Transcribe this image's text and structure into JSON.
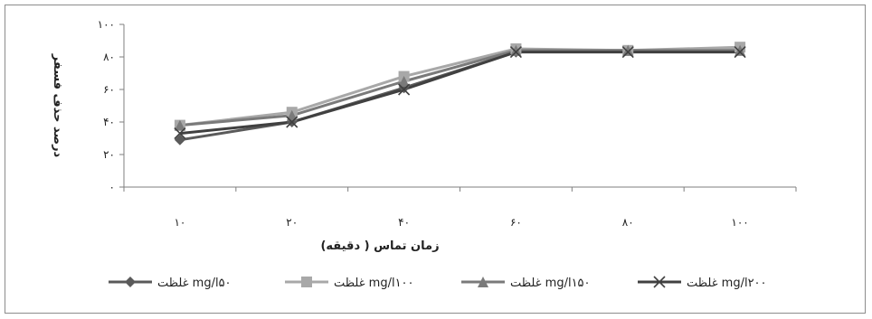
{
  "chart_data": {
    "type": "line",
    "title": "",
    "xlabel": "زمان تماس ( دقيقه)",
    "ylabel": "درصد حذف فسفر",
    "categories": [
      "۱۰",
      "۲۰",
      "۴۰",
      "۶۰",
      "۸۰",
      "۱۰۰"
    ],
    "x": [
      10,
      20,
      40,
      60,
      80,
      100
    ],
    "y_ticks": [
      {
        "value": 0,
        "label": "۰"
      },
      {
        "value": 20,
        "label": "۲۰"
      },
      {
        "value": 40,
        "label": "۴۰"
      },
      {
        "value": 60,
        "label": "۶۰"
      },
      {
        "value": 80,
        "label": "۸۰"
      },
      {
        "value": 100,
        "label": "۱۰۰"
      }
    ],
    "ylim": [
      0,
      100
    ],
    "grid": false,
    "legend_position": "bottom",
    "series": [
      {
        "name": "غلظت mg/l۵۰",
        "marker": "diamond",
        "color": "#5a5a5a",
        "values": [
          29,
          40,
          61,
          83,
          84,
          84
        ]
      },
      {
        "name": "غلظت mg/l۱۰۰",
        "marker": "square",
        "color": "#a8a8a8",
        "values": [
          38,
          46,
          68,
          85,
          84,
          86
        ]
      },
      {
        "name": "غلظت mg/l۱۵۰",
        "marker": "triangle",
        "color": "#7a7a7a",
        "values": [
          38,
          44,
          65,
          84,
          84,
          84
        ]
      },
      {
        "name": "غلظت mg/l۲۰۰",
        "marker": "x",
        "color": "#404040",
        "values": [
          33,
          40,
          60,
          83,
          83,
          83
        ]
      }
    ]
  }
}
